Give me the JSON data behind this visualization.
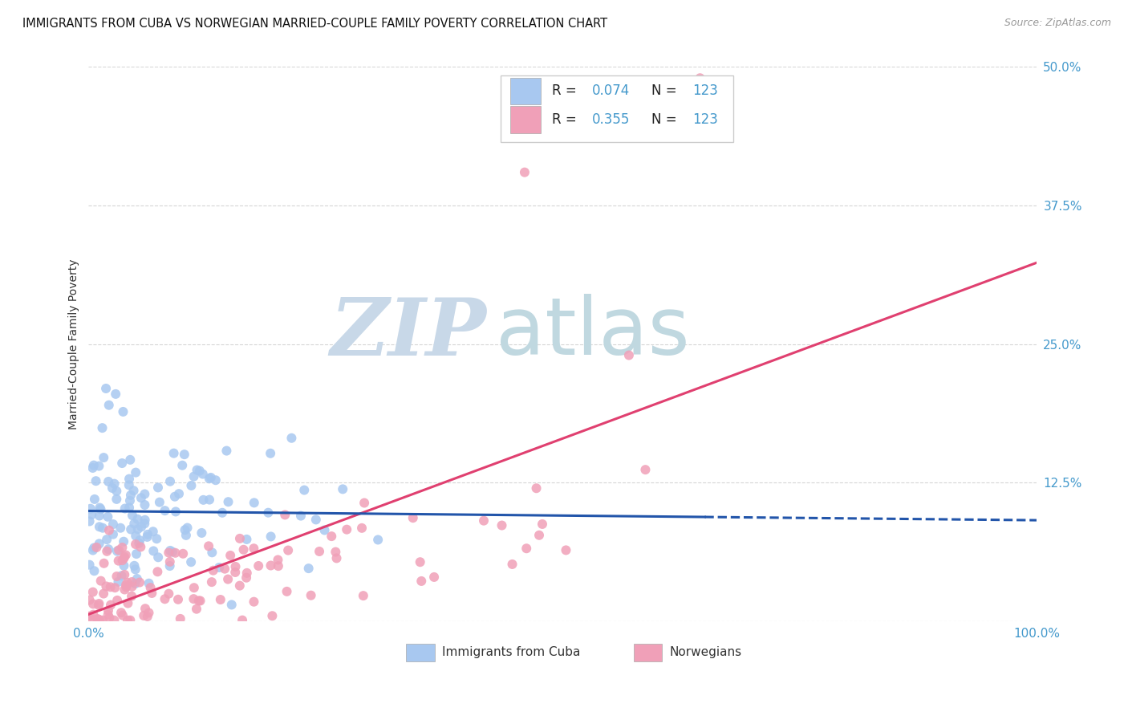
{
  "title": "IMMIGRANTS FROM CUBA VS NORWEGIAN MARRIED-COUPLE FAMILY POVERTY CORRELATION CHART",
  "source": "Source: ZipAtlas.com",
  "ylabel": "Married-Couple Family Poverty",
  "ytick_vals": [
    0.0,
    0.125,
    0.25,
    0.375,
    0.5
  ],
  "ytick_labels": [
    "",
    "12.5%",
    "25.0%",
    "37.5%",
    "50.0%"
  ],
  "xtick_labels": [
    "0.0%",
    "100.0%"
  ],
  "xlim": [
    0.0,
    1.0
  ],
  "ylim": [
    0.0,
    0.5
  ],
  "cuba_color": "#a8c8f0",
  "cuba_line_color": "#2255aa",
  "norwegian_color": "#f0a0b8",
  "norwegian_line_color": "#e04070",
  "background_color": "#ffffff",
  "watermark_zip": "ZIP",
  "watermark_atlas": "atlas",
  "watermark_color_zip": "#c8d8e8",
  "watermark_color_atlas": "#c0d8e0",
  "legend_label_cuba": "Immigrants from Cuba",
  "legend_label_norwegian": "Norwegians",
  "grid_color": "#cccccc",
  "tick_color": "#4499cc",
  "label_color": "#333333",
  "source_color": "#999999"
}
